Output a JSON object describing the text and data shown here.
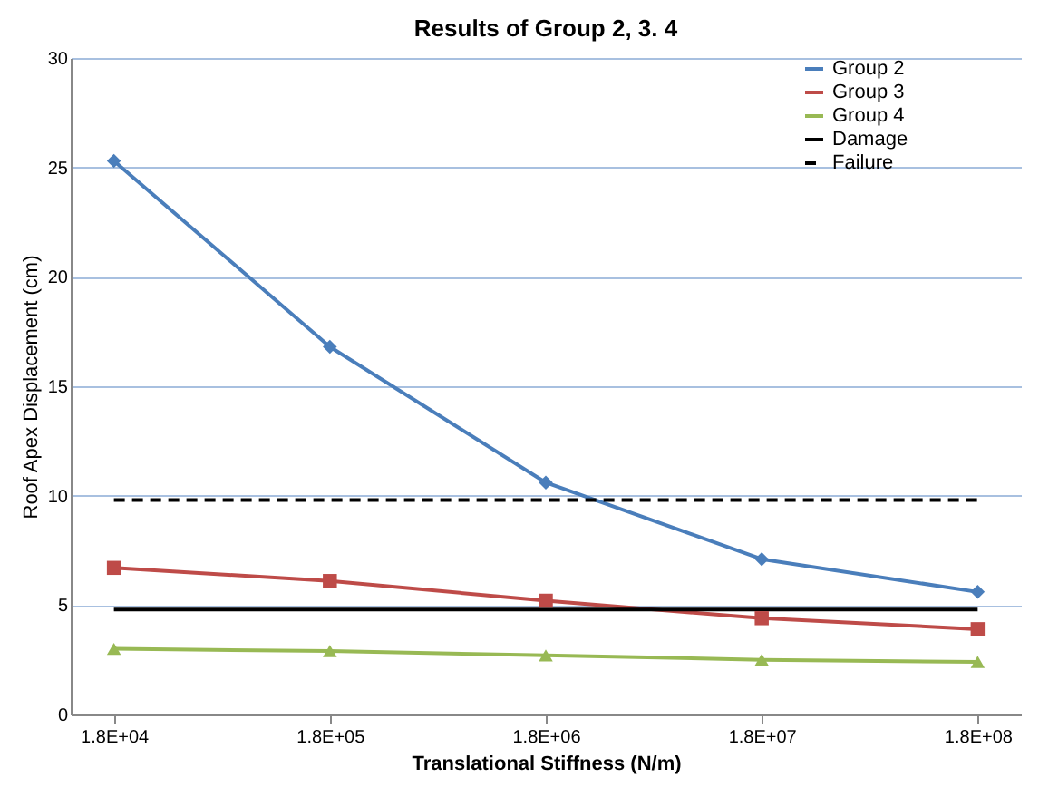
{
  "chart_data": {
    "type": "line",
    "title": "Results of Group 2, 3. 4",
    "xlabel": "Translational Stiffness (N/m)",
    "ylabel": "Roof Apex Displacement (cm)",
    "categories": [
      "1.8E+04",
      "1.8E+05",
      "1.8E+06",
      "1.8E+07",
      "1.8E+08"
    ],
    "series": [
      {
        "name": "Group 2",
        "color": "#4a7ebb",
        "marker": "diamond",
        "line_style": "solid",
        "values": [
          25.3,
          16.8,
          10.6,
          7.1,
          5.6
        ]
      },
      {
        "name": "Group 3",
        "color": "#be4b48",
        "marker": "square",
        "line_style": "solid",
        "values": [
          6.7,
          6.1,
          5.2,
          4.4,
          3.9
        ]
      },
      {
        "name": "Group 4",
        "color": "#98b954",
        "marker": "triangle",
        "line_style": "solid",
        "values": [
          3.0,
          2.9,
          2.7,
          2.5,
          2.4
        ]
      },
      {
        "name": "Damage",
        "color": "#000000",
        "marker": "none",
        "line_style": "solid",
        "values": [
          4.8,
          4.8,
          4.8,
          4.8,
          4.8
        ]
      },
      {
        "name": "Failure",
        "color": "#000000",
        "marker": "none",
        "line_style": "dashed",
        "values": [
          9.8,
          9.8,
          9.8,
          9.8,
          9.8
        ]
      }
    ],
    "ylim": [
      0,
      30
    ],
    "yticks": [
      0,
      5,
      10,
      15,
      20,
      25,
      30
    ],
    "grid": "y",
    "legend": "right"
  }
}
